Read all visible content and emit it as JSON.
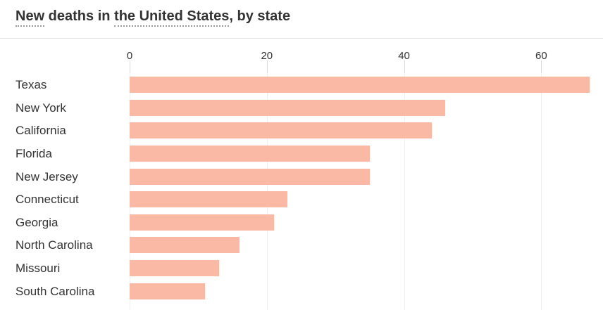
{
  "title": {
    "full": "New deaths in the United States, by state",
    "parts": [
      {
        "text": "New",
        "underlined": true
      },
      {
        "text": " deaths in ",
        "underlined": false
      },
      {
        "text": "the United States",
        "underlined": true
      },
      {
        "text": ", by state",
        "underlined": false
      }
    ]
  },
  "colors": {
    "bar": "#fab9a4",
    "text": "#333333",
    "gridline": "#efefef",
    "tick_stub": "#dadada",
    "divider": "#e2e2e2"
  },
  "chart_data": {
    "type": "bar",
    "orientation": "horizontal",
    "title": "New deaths in the United States, by state",
    "categories": [
      "Texas",
      "New York",
      "California",
      "Florida",
      "New Jersey",
      "Connecticut",
      "Georgia",
      "North Carolina",
      "Missouri",
      "South Carolina"
    ],
    "values": [
      67,
      46,
      44,
      35,
      35,
      23,
      21,
      16,
      13,
      11
    ],
    "x_ticks": [
      0,
      20,
      40,
      60
    ],
    "x_tick_labels": [
      "0",
      "20",
      "40",
      "60"
    ],
    "xlim": [
      0,
      69
    ],
    "xlabel": "",
    "ylabel": "",
    "grid": true,
    "legend": false,
    "bar_color": "#fab9a4"
  }
}
